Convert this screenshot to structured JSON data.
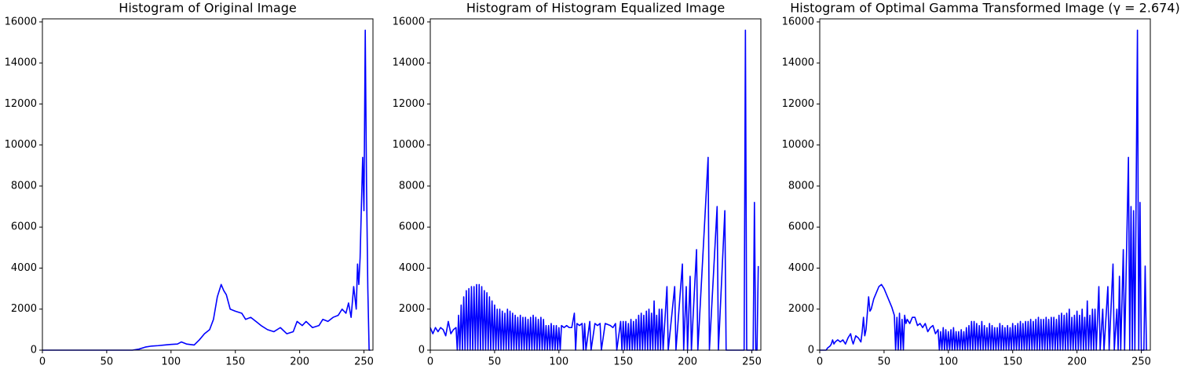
{
  "chart_data": [
    {
      "type": "line",
      "title": "Histogram of Original Image",
      "color": "#0000ff",
      "x": [
        0,
        70,
        75,
        80,
        85,
        90,
        95,
        100,
        105,
        108,
        112,
        118,
        122,
        126,
        130,
        133,
        136,
        139,
        141,
        143,
        146,
        150,
        155,
        158,
        162,
        166,
        170,
        175,
        180,
        185,
        190,
        195,
        198,
        202,
        205,
        210,
        215,
        218,
        222,
        226,
        230,
        233,
        236,
        238,
        240,
        242,
        244,
        245,
        246,
        247,
        248,
        249,
        250,
        251,
        252,
        253,
        254,
        255
      ],
      "values": [
        0,
        0,
        50,
        150,
        200,
        220,
        250,
        280,
        300,
        400,
        300,
        250,
        500,
        800,
        1000,
        1500,
        2600,
        3200,
        2900,
        2700,
        2000,
        1900,
        1800,
        1500,
        1600,
        1400,
        1200,
        1000,
        900,
        1100,
        800,
        900,
        1400,
        1200,
        1400,
        1100,
        1200,
        1500,
        1400,
        1600,
        1700,
        2000,
        1800,
        2300,
        1600,
        3100,
        2000,
        4200,
        3200,
        4500,
        7000,
        9400,
        6800,
        15600,
        8000,
        3000,
        0,
        0
      ],
      "xlim": [
        0,
        257
      ],
      "xticks": [
        0,
        50,
        100,
        150,
        200,
        250
      ],
      "ylim": [
        0,
        16150
      ],
      "yticks": [
        0,
        2000,
        4000,
        6000,
        8000,
        10000,
        12000,
        14000,
        16000
      ]
    },
    {
      "type": "line",
      "title": "Histogram of Histogram Equalized Image",
      "color": "#0000ff",
      "x": [
        0,
        2,
        4,
        6,
        8,
        10,
        12,
        14,
        16,
        18,
        20,
        21,
        22,
        23,
        24,
        25,
        26,
        27,
        28,
        29,
        30,
        31,
        32,
        33,
        34,
        35,
        36,
        37,
        38,
        39,
        40,
        41,
        42,
        43,
        44,
        45,
        46,
        47,
        48,
        49,
        50,
        51,
        52,
        53,
        54,
        55,
        56,
        57,
        58,
        59,
        60,
        61,
        62,
        63,
        64,
        65,
        66,
        67,
        68,
        69,
        70,
        71,
        72,
        73,
        74,
        75,
        76,
        77,
        78,
        79,
        80,
        81,
        82,
        83,
        84,
        85,
        86,
        87,
        88,
        89,
        90,
        91,
        92,
        93,
        94,
        95,
        96,
        97,
        98,
        99,
        100,
        101,
        102,
        104,
        106,
        108,
        110,
        112,
        113,
        114,
        116,
        118,
        119,
        120,
        121,
        124,
        125,
        128,
        130,
        132,
        133,
        136,
        140,
        142,
        144,
        145,
        148,
        149,
        150,
        151,
        152,
        153,
        154,
        155,
        156,
        157,
        158,
        159,
        160,
        161,
        162,
        163,
        164,
        165,
        166,
        167,
        168,
        169,
        170,
        171,
        172,
        173,
        174,
        175,
        176,
        177,
        178,
        179,
        180,
        181,
        184,
        185,
        190,
        191,
        196,
        197,
        199,
        200,
        202,
        203,
        207,
        208,
        216,
        217,
        223,
        224,
        229,
        230,
        244,
        245,
        246,
        251,
        252,
        253,
        254,
        255
      ],
      "values": [
        1100,
        800,
        1100,
        900,
        1100,
        1000,
        700,
        1400,
        800,
        1000,
        1100,
        0,
        1700,
        0,
        2200,
        0,
        2600,
        0,
        2900,
        0,
        3000,
        0,
        3100,
        0,
        3100,
        0,
        3200,
        0,
        3200,
        0,
        3100,
        0,
        2900,
        0,
        2800,
        0,
        2600,
        0,
        2400,
        0,
        2200,
        0,
        2000,
        0,
        2000,
        0,
        1900,
        0,
        1800,
        0,
        2000,
        0,
        1900,
        0,
        1800,
        0,
        1700,
        0,
        1600,
        0,
        1700,
        0,
        1600,
        0,
        1600,
        0,
        1500,
        0,
        1600,
        0,
        1700,
        0,
        1600,
        0,
        1500,
        0,
        1600,
        0,
        1500,
        0,
        1200,
        0,
        1200,
        0,
        1300,
        0,
        1200,
        0,
        1200,
        0,
        1100,
        0,
        1200,
        1100,
        1200,
        1100,
        1100,
        1800,
        0,
        1300,
        1200,
        1300,
        0,
        1300,
        0,
        1400,
        0,
        1300,
        1200,
        1300,
        0,
        1300,
        1200,
        1100,
        1300,
        0,
        1400,
        0,
        1400,
        0,
        1400,
        0,
        1300,
        0,
        1500,
        0,
        1400,
        0,
        1500,
        0,
        1700,
        0,
        1800,
        0,
        1700,
        0,
        1900,
        0,
        2000,
        0,
        1800,
        0,
        2400,
        0,
        1700,
        0,
        2000,
        0,
        2000,
        0,
        3100,
        0,
        3100,
        0,
        4200,
        0,
        3100,
        0,
        3600,
        0,
        4900,
        0,
        9400,
        0,
        7000,
        0,
        6800,
        0,
        0,
        15600,
        0,
        0,
        7200,
        0,
        0,
        4100
      ],
      "xlim": [
        0,
        257
      ],
      "xticks": [
        0,
        50,
        100,
        150,
        200,
        250
      ],
      "ylim": [
        0,
        16150
      ],
      "yticks": [
        0,
        2000,
        4000,
        6000,
        8000,
        10000,
        12000,
        14000,
        16000
      ]
    },
    {
      "type": "line",
      "title": "Histogram of Optimal Gamma Transformed Image (γ = 2.674)",
      "color": "#0000ff",
      "x": [
        0,
        5,
        6,
        8,
        9,
        10,
        11,
        12,
        14,
        16,
        18,
        20,
        22,
        24,
        25,
        26,
        28,
        30,
        32,
        33,
        34,
        35,
        36,
        38,
        39,
        40,
        42,
        44,
        46,
        48,
        50,
        52,
        54,
        56,
        58,
        59,
        60,
        61,
        62,
        63,
        64,
        65,
        66,
        67,
        68,
        70,
        72,
        74,
        76,
        78,
        80,
        82,
        84,
        86,
        88,
        90,
        92,
        93,
        94,
        95,
        96,
        97,
        98,
        99,
        100,
        101,
        102,
        103,
        104,
        105,
        106,
        107,
        108,
        109,
        110,
        111,
        112,
        113,
        114,
        115,
        116,
        117,
        118,
        119,
        120,
        121,
        122,
        123,
        124,
        125,
        126,
        127,
        128,
        129,
        130,
        131,
        132,
        133,
        134,
        135,
        136,
        137,
        138,
        139,
        140,
        141,
        142,
        143,
        144,
        145,
        146,
        147,
        148,
        149,
        150,
        151,
        152,
        153,
        154,
        155,
        156,
        157,
        158,
        159,
        160,
        161,
        162,
        163,
        164,
        165,
        166,
        167,
        168,
        169,
        170,
        171,
        172,
        173,
        174,
        175,
        176,
        177,
        178,
        179,
        180,
        181,
        182,
        183,
        184,
        185,
        186,
        187,
        188,
        189,
        190,
        191,
        192,
        193,
        194,
        195,
        196,
        197,
        198,
        199,
        200,
        201,
        202,
        203,
        204,
        205,
        206,
        207,
        208,
        209,
        210,
        211,
        212,
        213,
        214,
        215,
        217,
        218,
        220,
        221,
        224,
        225,
        228,
        229,
        231,
        232,
        233,
        234,
        236,
        237,
        240,
        241,
        242,
        243,
        244,
        245,
        247,
        248,
        249,
        250,
        252,
        253,
        254
      ],
      "values": [
        0,
        0,
        100,
        200,
        300,
        500,
        300,
        400,
        500,
        400,
        500,
        300,
        600,
        800,
        500,
        300,
        700,
        600,
        400,
        900,
        1600,
        700,
        1000,
        2600,
        1900,
        2000,
        2500,
        2800,
        3100,
        3200,
        3000,
        2700,
        2400,
        2100,
        1700,
        0,
        1600,
        0,
        1800,
        0,
        1500,
        0,
        1700,
        1300,
        1500,
        1300,
        1600,
        1600,
        1200,
        1300,
        1100,
        1300,
        900,
        1100,
        1200,
        800,
        1000,
        0,
        900,
        0,
        1100,
        0,
        1000,
        0,
        900,
        0,
        1000,
        0,
        1100,
        0,
        900,
        0,
        900,
        0,
        1000,
        0,
        900,
        0,
        1100,
        0,
        1200,
        0,
        1400,
        0,
        1400,
        0,
        1300,
        0,
        1200,
        0,
        1400,
        0,
        1200,
        0,
        1100,
        0,
        1300,
        0,
        1200,
        0,
        1100,
        0,
        1100,
        0,
        1300,
        0,
        1200,
        0,
        1100,
        0,
        1200,
        0,
        1100,
        0,
        1300,
        0,
        1200,
        0,
        1300,
        0,
        1400,
        0,
        1300,
        0,
        1400,
        0,
        1400,
        0,
        1500,
        0,
        1400,
        0,
        1500,
        0,
        1600,
        0,
        1500,
        0,
        1500,
        0,
        1600,
        0,
        1500,
        0,
        1600,
        0,
        1600,
        0,
        1500,
        0,
        1700,
        0,
        1800,
        0,
        1700,
        0,
        1800,
        0,
        2000,
        0,
        1600,
        0,
        1700,
        0,
        1900,
        0,
        1700,
        0,
        2000,
        0,
        1600,
        0,
        2400,
        0,
        1700,
        0,
        2000,
        0,
        2000,
        0,
        3100,
        0,
        2000,
        0,
        3100,
        0,
        4200,
        0,
        2000,
        0,
        3600,
        0,
        4900,
        0,
        9400,
        0,
        7000,
        0,
        6800,
        0,
        15600,
        0,
        7200,
        0,
        0,
        4100,
        0
      ],
      "xlim": [
        0,
        257
      ],
      "xticks": [
        0,
        50,
        100,
        150,
        200,
        250
      ],
      "ylim": [
        0,
        16150
      ],
      "yticks": [
        0,
        2000,
        4000,
        6000,
        8000,
        10000,
        12000,
        14000,
        16000
      ]
    }
  ]
}
